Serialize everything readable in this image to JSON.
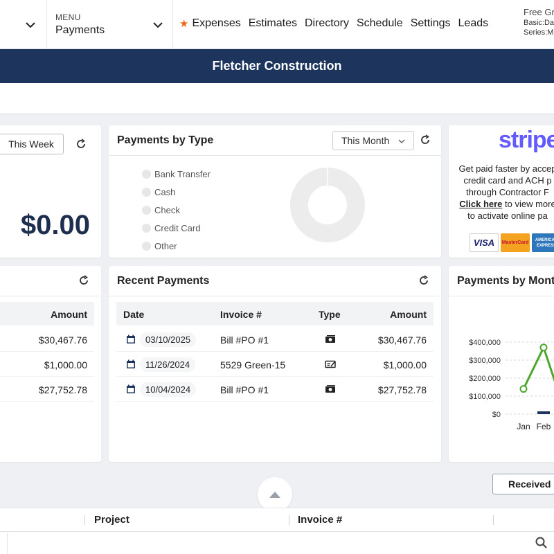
{
  "nav": {
    "menu_label": "MENU",
    "menu_title": "Payments",
    "links": [
      "Expenses",
      "Estimates",
      "Directory",
      "Schedule",
      "Settings",
      "Leads"
    ],
    "plan_line1": "Free Gr",
    "plan_line2": "Basic:Da",
    "plan_line3": "Series:M"
  },
  "banner": {
    "company": "Fletcher Construction"
  },
  "summary_card": {
    "period_button": "This Week",
    "total": "$0.00"
  },
  "payments_by_type": {
    "title": "Payments by Type",
    "period": "This Month",
    "legend": [
      "Bank Transfer",
      "Cash",
      "Check",
      "Credit Card",
      "Other"
    ]
  },
  "stripe_card": {
    "logo": "stripe",
    "line1": "Get paid faster by accep",
    "line2": "credit card and ACH p",
    "line3": "through Contractor F",
    "link": "Click here",
    "line4_rest": " to view more",
    "line5": "to activate online pa",
    "cards": [
      "VISA",
      "MasterCard",
      "AMERICAN EXPRESS"
    ]
  },
  "left_table": {
    "header_amount": "Amount",
    "amounts": [
      "$30,467.76",
      "$1,000.00",
      "$27,752.78"
    ]
  },
  "recent_payments": {
    "title": "Recent Payments",
    "headers": {
      "date": "Date",
      "invoice": "Invoice #",
      "type": "Type",
      "amount": "Amount"
    },
    "rows": [
      {
        "date": "03/10/2025",
        "invoice": "Bill #PO #1",
        "type_icon": "cash-icon",
        "amount": "$30,467.76"
      },
      {
        "date": "11/26/2024",
        "invoice": "5529 Green-15",
        "type_icon": "check-icon",
        "amount": "$1,000.00"
      },
      {
        "date": "10/04/2024",
        "invoice": "Bill #PO #1",
        "type_icon": "cash-icon",
        "amount": "$27,752.78"
      }
    ]
  },
  "payments_by_month": {
    "title": "Payments by Mont"
  },
  "chart_data": {
    "type": "line",
    "categories": [
      "Jan",
      "Feb"
    ],
    "series": [
      {
        "values": [
          140000,
          370000
        ]
      }
    ],
    "y_ticks": [
      "$0",
      "$100,000",
      "$200,000",
      "$300,000",
      "$400,000"
    ],
    "ylim": [
      0,
      400000
    ],
    "grid": true,
    "line_color": "#4ba62c"
  },
  "bottom": {
    "received_button": "Received",
    "columns": [
      "Project",
      "Invoice #"
    ]
  }
}
